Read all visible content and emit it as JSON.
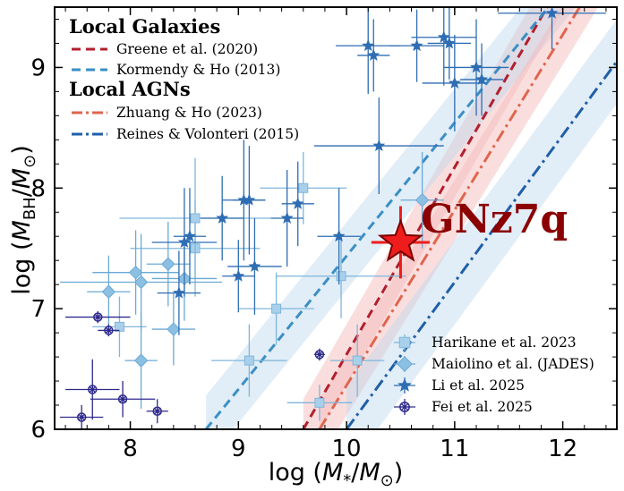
{
  "chart_data": {
    "type": "scatter",
    "xlabel": "log (M*/M☉)",
    "ylabel": "log (M_BH/M☉)",
    "xlim": [
      7.3,
      12.5
    ],
    "ylim": [
      6.0,
      9.5
    ],
    "x_ticks": [
      "8",
      "9",
      "10",
      "11",
      "12"
    ],
    "y_ticks": [
      "6",
      "7",
      "8",
      "9"
    ],
    "grid": false,
    "legend_upper": {
      "titles": [
        "Local Galaxies",
        "Local AGNs"
      ],
      "entries": [
        "Greene et al. (2020)",
        "Kormendy & Ho (2013)",
        "Zhuang & Ho (2023)",
        "Reines & Volonteri (2015)"
      ]
    },
    "relations": [
      {
        "name": "Greene et al. (2020)",
        "group": "Local Galaxies",
        "color": "#b21f2d",
        "dash": "dashed",
        "x": [
          9.6,
          12.5
        ],
        "y": [
          6.0,
          10.5
        ],
        "band": 0.25,
        "band_color": "#f4b6b6"
      },
      {
        "name": "Kormendy & Ho (2013)",
        "group": "Local Galaxies",
        "color": "#3a8fc4",
        "dash": "dashed",
        "x": [
          8.7,
          12.5
        ],
        "y": [
          6.0,
          10.2
        ],
        "band": 0.28,
        "band_color": "#bcd6ee"
      },
      {
        "name": "Zhuang & Ho (2023)",
        "group": "Local AGNs",
        "color": "#e0654e",
        "dash": "dashdot",
        "x": [
          9.75,
          12.5
        ],
        "y": [
          6.0,
          10.0
        ],
        "band": 0.25,
        "band_color": "#f4b6b6"
      },
      {
        "name": "Reines & Volonteri (2015)",
        "group": "Local AGNs",
        "color": "#1f5fa8",
        "dash": "dashdot",
        "x": [
          10.0,
          12.5
        ],
        "y": [
          6.0,
          9.05
        ],
        "band": 0.35,
        "band_color": "#bcd6ee"
      }
    ],
    "series": [
      {
        "name": "Harikane et al. 2023",
        "marker": "square",
        "color": "#a9d0ea",
        "edge": "#7fb6dc",
        "points": [
          {
            "x": 7.9,
            "y": 6.85,
            "xerr": 0.25,
            "yerr": 0.25
          },
          {
            "x": 8.6,
            "y": 7.5,
            "xerr": 0.6,
            "yerr": 0.4
          },
          {
            "x": 8.6,
            "y": 7.75,
            "xerr": 0.7,
            "yerr": 0.5
          },
          {
            "x": 9.1,
            "y": 6.57,
            "xerr": 0.35,
            "yerr": 0.3
          },
          {
            "x": 9.35,
            "y": 7.0,
            "xerr": 0.35,
            "yerr": 0.3
          },
          {
            "x": 9.6,
            "y": 8.0,
            "xerr": 0.4,
            "yerr": 0.3
          },
          {
            "x": 9.95,
            "y": 7.27,
            "xerr": 0.6,
            "yerr": 0.35
          },
          {
            "x": 9.75,
            "y": 6.22,
            "xerr": 0.3,
            "yerr": 0.15
          },
          {
            "x": 10.1,
            "y": 6.57,
            "xerr": 0.25,
            "yerr": 0.3
          }
        ]
      },
      {
        "name": "Maiolino et al. (JADES)",
        "marker": "diamond",
        "color": "#8cc0e2",
        "edge": "#6aa9d6",
        "points": [
          {
            "x": 7.8,
            "y": 7.14,
            "xerr": 0.2,
            "yerr": 0.3
          },
          {
            "x": 8.05,
            "y": 7.3,
            "xerr": 0.4,
            "yerr": 0.35
          },
          {
            "x": 8.1,
            "y": 7.22,
            "xerr": 0.75,
            "yerr": 0.4
          },
          {
            "x": 8.1,
            "y": 6.57,
            "xerr": 0.15,
            "yerr": 0.4
          },
          {
            "x": 8.35,
            "y": 7.37,
            "xerr": 0.2,
            "yerr": 0.35
          },
          {
            "x": 8.4,
            "y": 6.83,
            "xerr": 0.2,
            "yerr": 0.3
          },
          {
            "x": 8.5,
            "y": 7.25,
            "xerr": 0.3,
            "yerr": 0.35
          },
          {
            "x": 10.7,
            "y": 7.9,
            "xerr": 0.2,
            "yerr": 0.4
          }
        ]
      },
      {
        "name": "Li et al. 2025",
        "marker": "star",
        "color": "#2f6db3",
        "edge": "#2f6db3",
        "points": [
          {
            "x": 8.45,
            "y": 7.13,
            "xerr": 0.2,
            "yerr": 0.35
          },
          {
            "x": 8.5,
            "y": 7.55,
            "xerr": 0.3,
            "yerr": 0.45
          },
          {
            "x": 8.55,
            "y": 7.6,
            "xerr": 0.15,
            "yerr": 0.4
          },
          {
            "x": 8.85,
            "y": 7.75,
            "xerr": 0.2,
            "yerr": 0.35
          },
          {
            "x": 9.0,
            "y": 7.27,
            "xerr": 0.15,
            "yerr": 0.3
          },
          {
            "x": 9.05,
            "y": 7.9,
            "xerr": 0.2,
            "yerr": 0.5
          },
          {
            "x": 9.1,
            "y": 7.9,
            "xerr": 0.15,
            "yerr": 0.45
          },
          {
            "x": 9.15,
            "y": 7.35,
            "xerr": 0.25,
            "yerr": 0.4
          },
          {
            "x": 9.45,
            "y": 7.75,
            "xerr": 0.15,
            "yerr": 0.4
          },
          {
            "x": 9.55,
            "y": 7.87,
            "xerr": 0.15,
            "yerr": 0.35
          },
          {
            "x": 9.93,
            "y": 7.6,
            "xerr": 0.2,
            "yerr": 0.4
          },
          {
            "x": 10.3,
            "y": 8.35,
            "xerr": 0.6,
            "yerr": 0.4
          },
          {
            "x": 10.2,
            "y": 9.18,
            "xerr": 0.3,
            "yerr": 0.4
          },
          {
            "x": 10.25,
            "y": 9.1,
            "xerr": 0.15,
            "yerr": 0.3
          },
          {
            "x": 10.65,
            "y": 9.18,
            "xerr": 0.25,
            "yerr": 0.3
          },
          {
            "x": 10.9,
            "y": 9.25,
            "xerr": 0.3,
            "yerr": 0.4
          },
          {
            "x": 10.95,
            "y": 9.2,
            "xerr": 0.2,
            "yerr": 0.3
          },
          {
            "x": 11.0,
            "y": 8.87,
            "xerr": 0.3,
            "yerr": 0.4
          },
          {
            "x": 11.2,
            "y": 9.0,
            "xerr": 0.3,
            "yerr": 0.4
          },
          {
            "x": 11.25,
            "y": 8.9,
            "xerr": 0.2,
            "yerr": 0.3
          },
          {
            "x": 11.9,
            "y": 9.45,
            "xerr": 0.5,
            "yerr": 0.3
          }
        ]
      },
      {
        "name": "Fei et al. 2025",
        "marker": "circle-x",
        "color": "#2e2a8c",
        "edge": "#2e2a8c",
        "points": [
          {
            "x": 7.55,
            "y": 6.1,
            "xerr": 0.2,
            "yerr": 0.1
          },
          {
            "x": 7.65,
            "y": 6.33,
            "xerr": 0.25,
            "yerr": 0.25
          },
          {
            "x": 7.7,
            "y": 6.93,
            "xerr": 0.3,
            "yerr": 0.05
          },
          {
            "x": 7.8,
            "y": 6.82,
            "xerr": 0.1,
            "yerr": 0.05
          },
          {
            "x": 7.93,
            "y": 6.25,
            "xerr": 0.3,
            "yerr": 0.15
          },
          {
            "x": 8.25,
            "y": 6.15,
            "xerr": 0.1,
            "yerr": 0.1
          },
          {
            "x": 9.75,
            "y": 6.62,
            "xerr": 0.05,
            "yerr": 0.05
          }
        ]
      }
    ],
    "highlight": {
      "name": "GNz7q",
      "x": 10.5,
      "y": 7.55,
      "xerr": 0.27,
      "yerr": 0.3,
      "color": "#ee1c1c"
    }
  }
}
